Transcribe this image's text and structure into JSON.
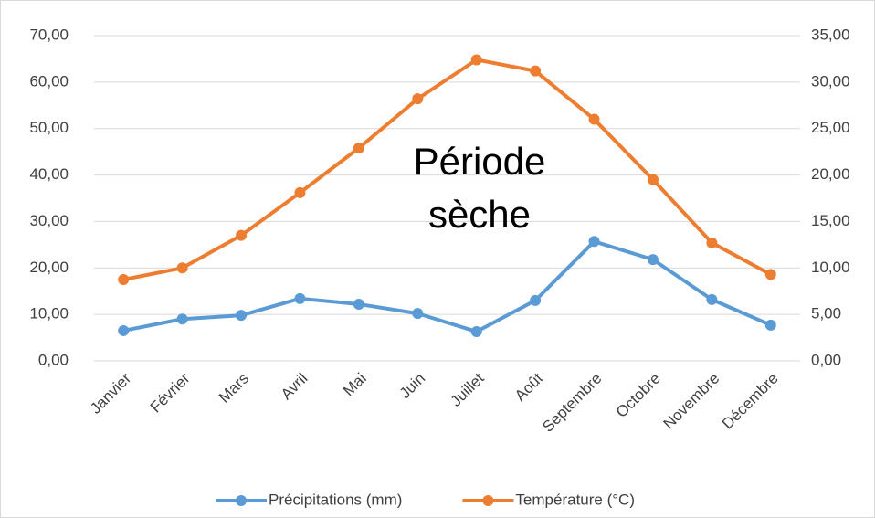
{
  "chart_data": {
    "type": "line",
    "annotation": "Période sèche",
    "categories": [
      "Janvier",
      "Février",
      "Mars",
      "Avril",
      "Mai",
      "Juin",
      "Juillet",
      "Août",
      "Septembre",
      "Octobre",
      "Novembre",
      "Décembre"
    ],
    "series": [
      {
        "name": "Précipitations (mm)",
        "color": "#5b9bd5",
        "values": [
          6.5,
          9.0,
          9.8,
          13.4,
          12.2,
          10.2,
          6.3,
          13.0,
          25.7,
          21.8,
          13.2,
          7.7
        ]
      },
      {
        "name": "Température (°C)",
        "color": "#ed7d31",
        "axis": "y2",
        "values": [
          8.75,
          10.0,
          13.5,
          18.1,
          22.9,
          28.2,
          32.4,
          31.2,
          26.0,
          19.5,
          12.7,
          9.3
        ]
      }
    ],
    "ylim": [
      0,
      70
    ],
    "yticks": [
      {
        "value": 0,
        "label": "0,00"
      },
      {
        "value": 10,
        "label": "10,00"
      },
      {
        "value": 20,
        "label": "20,00"
      },
      {
        "value": 30,
        "label": "30,00"
      },
      {
        "value": 40,
        "label": "40,00"
      },
      {
        "value": 50,
        "label": "50,00"
      },
      {
        "value": 60,
        "label": "60,00"
      },
      {
        "value": 70,
        "label": "70,00"
      }
    ],
    "y2lim": [
      0,
      35
    ],
    "y2ticks": [
      {
        "value": 0,
        "label": "0,00"
      },
      {
        "value": 5,
        "label": "5,00"
      },
      {
        "value": 10,
        "label": "10,00"
      },
      {
        "value": 15,
        "label": "15,00"
      },
      {
        "value": 20,
        "label": "20,00"
      },
      {
        "value": 25,
        "label": "25,00"
      },
      {
        "value": 30,
        "label": "30,00"
      },
      {
        "value": 35,
        "label": "35,00"
      }
    ],
    "grid": true
  }
}
